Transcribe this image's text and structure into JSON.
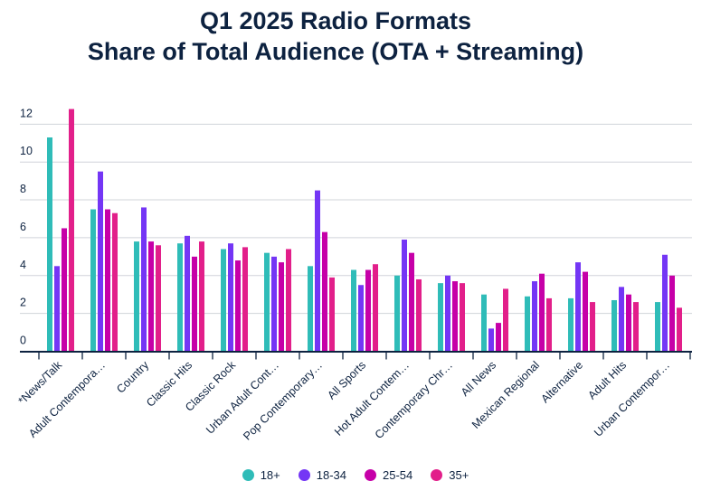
{
  "chart_data": {
    "type": "bar",
    "title": "Q1 2025 Radio Formats",
    "subtitle": "Share of Total Audience (OTA + Streaming)",
    "xlabel": "",
    "ylabel": "",
    "ylim": [
      0,
      12.8
    ],
    "yticks": [
      0,
      2,
      4,
      6,
      8,
      10,
      12
    ],
    "grid": true,
    "legend_position": "bottom",
    "categories": [
      "*News/Talk",
      "Adult Contempora…",
      "Country",
      "Classic Hits",
      "Classic Rock",
      "Urban Adult Cont…",
      "Pop Contemporary…",
      "All Sports",
      "Hot Adult Contem…",
      "Contemporary Chr…",
      "All News",
      "Mexican Regional",
      "Alternative",
      "Adult Hits",
      "Urban Contempor…"
    ],
    "series": [
      {
        "name": "18+",
        "color": "#2fbcb8",
        "values": [
          11.3,
          7.5,
          5.8,
          5.7,
          5.4,
          5.2,
          4.5,
          4.3,
          4.0,
          3.6,
          3.0,
          2.9,
          2.8,
          2.7,
          2.6
        ]
      },
      {
        "name": "18-34",
        "color": "#7436f5",
        "values": [
          4.5,
          9.5,
          7.6,
          6.1,
          5.7,
          5.0,
          8.5,
          3.5,
          5.9,
          4.0,
          1.2,
          3.7,
          4.7,
          3.4,
          5.1
        ]
      },
      {
        "name": "25-54",
        "color": "#c600a8",
        "values": [
          6.5,
          7.5,
          5.8,
          5.0,
          4.8,
          4.7,
          6.3,
          4.3,
          5.2,
          3.7,
          1.5,
          4.1,
          4.2,
          3.0,
          4.0
        ]
      },
      {
        "name": "35+",
        "color": "#e21f8a",
        "values": [
          12.8,
          7.3,
          5.6,
          5.8,
          5.5,
          5.4,
          3.9,
          4.6,
          3.8,
          3.6,
          3.3,
          2.8,
          2.6,
          2.6,
          2.3
        ]
      }
    ]
  }
}
